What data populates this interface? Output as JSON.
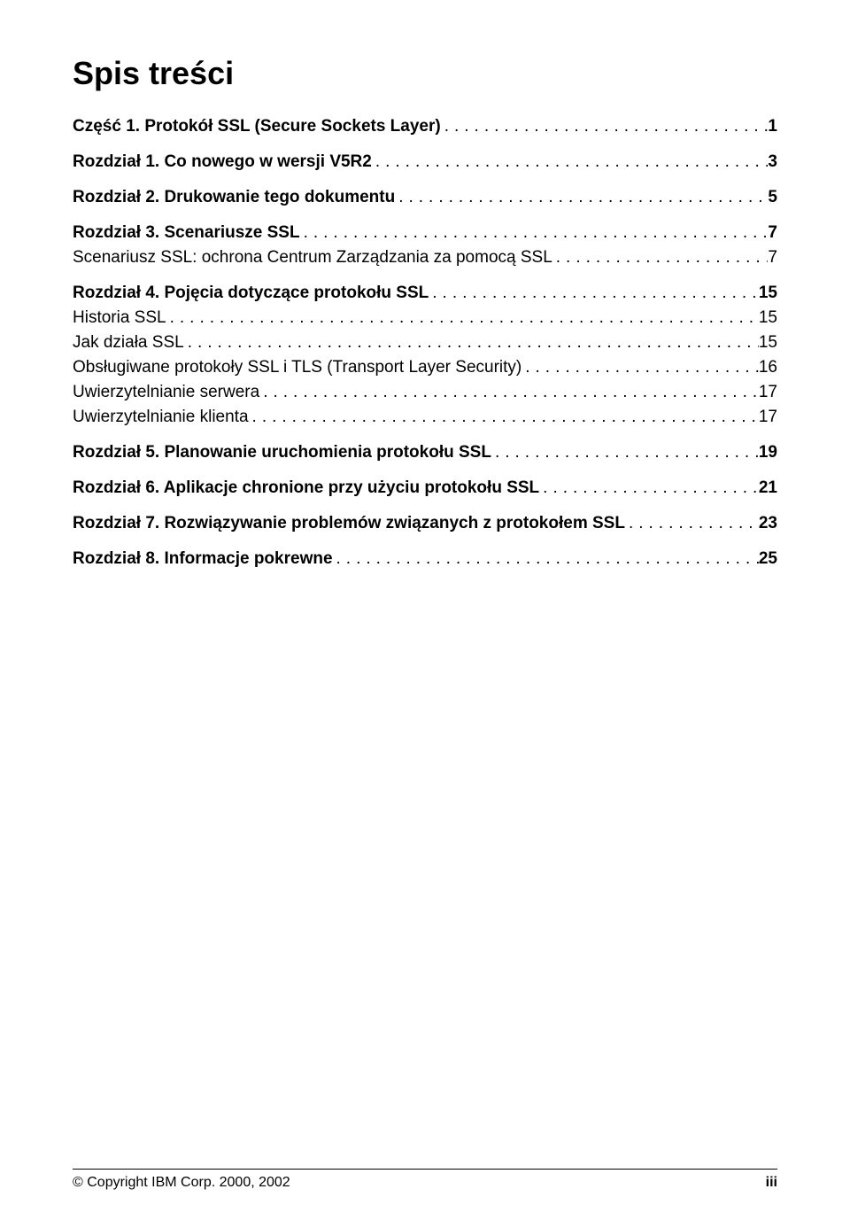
{
  "title": "Spis treści",
  "toc": [
    {
      "group": [
        {
          "label": "Część 1. Protokół SSL (Secure Sockets Layer)",
          "page": "1",
          "bold": true
        }
      ]
    },
    {
      "group": [
        {
          "label": "Rozdział 1. Co nowego w wersji V5R2",
          "page": "3",
          "bold": true
        }
      ]
    },
    {
      "group": [
        {
          "label": "Rozdział 2. Drukowanie tego dokumentu",
          "page": "5",
          "bold": true
        }
      ]
    },
    {
      "group": [
        {
          "label": "Rozdział 3. Scenariusze SSL",
          "page": "7",
          "bold": true
        },
        {
          "label": "Scenariusz SSL: ochrona Centrum Zarządzania za pomocą SSL",
          "page": "7",
          "bold": false
        }
      ]
    },
    {
      "group": [
        {
          "label": "Rozdział 4. Pojęcia dotyczące protokołu SSL",
          "page": "15",
          "bold": true
        },
        {
          "label": "Historia SSL",
          "page": "15",
          "bold": false
        },
        {
          "label": "Jak działa SSL",
          "page": "15",
          "bold": false
        },
        {
          "label": "Obsługiwane protokoły SSL i TLS (Transport Layer Security)",
          "page": "16",
          "bold": false
        },
        {
          "label": "Uwierzytelnianie serwera",
          "page": "17",
          "bold": false
        },
        {
          "label": "Uwierzytelnianie klienta",
          "page": "17",
          "bold": false
        }
      ]
    },
    {
      "group": [
        {
          "label": "Rozdział 5. Planowanie uruchomienia protokołu SSL",
          "page": "19",
          "bold": true
        }
      ]
    },
    {
      "group": [
        {
          "label": "Rozdział 6. Aplikacje chronione przy użyciu protokołu SSL",
          "page": "21",
          "bold": true
        }
      ]
    },
    {
      "group": [
        {
          "label": "Rozdział 7. Rozwiązywanie problemów związanych z protokołem SSL",
          "page": "23",
          "bold": true
        }
      ]
    },
    {
      "group": [
        {
          "label": "Rozdział 8. Informacje pokrewne",
          "page": "25",
          "bold": true
        }
      ]
    }
  ],
  "footer": {
    "left": "© Copyright IBM Corp. 2000, 2002",
    "right": "iii"
  },
  "colors": {
    "background": "#ffffff",
    "text": "#000000"
  }
}
